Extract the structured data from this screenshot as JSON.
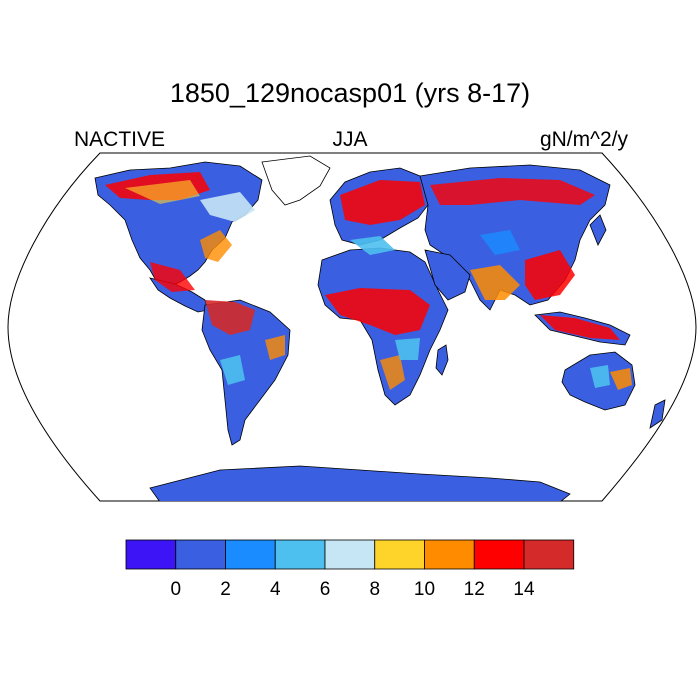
{
  "title": "1850_129nocasp01 (yrs 8-17)",
  "left_label": "NACTIVE",
  "center_label": "JJA",
  "right_label": "gN/m^2/y",
  "map": {
    "projection": "Robinson-like global",
    "land_background_color": "#3a5fe0",
    "ocean_color": "#ffffff",
    "coastline_color": "#000000"
  },
  "colorbar": {
    "colors": [
      "#3d14f5",
      "#3a5fe0",
      "#1a8cff",
      "#4ec0f0",
      "#c6e6f5",
      "#ffd42a",
      "#ff8c00",
      "#ff0000",
      "#d42a2a"
    ],
    "tick_labels": [
      "0",
      "2",
      "4",
      "6",
      "8",
      "10",
      "12",
      "14"
    ],
    "units": "gN/m^2/y"
  }
}
